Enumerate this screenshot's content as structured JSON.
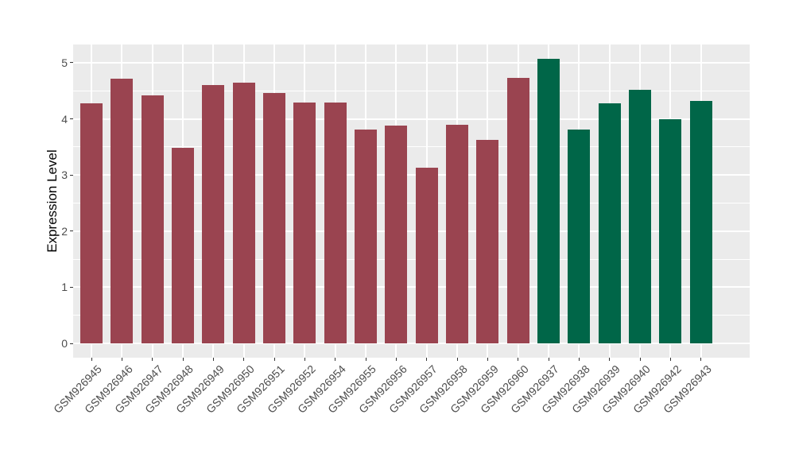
{
  "chart_data": {
    "type": "bar",
    "title": "",
    "xlabel": "",
    "ylabel": "Expression Level",
    "ylim": [
      0,
      5.07
    ],
    "y_major_ticks": [
      0,
      1,
      2,
      3,
      4,
      5
    ],
    "y_tick_labels": [
      "0",
      "1",
      "2",
      "3",
      "4",
      "5"
    ],
    "grid": "on",
    "legend": "none",
    "categories": [
      "GSM926945",
      "GSM926946",
      "GSM926947",
      "GSM926948",
      "GSM926949",
      "GSM926950",
      "GSM926951",
      "GSM926952",
      "GSM926954",
      "GSM926955",
      "GSM926956",
      "GSM926957",
      "GSM926958",
      "GSM926959",
      "GSM926960",
      "GSM926937",
      "GSM926938",
      "GSM926939",
      "GSM926940",
      "GSM926942",
      "GSM926943"
    ],
    "values": [
      4.28,
      4.72,
      4.42,
      3.48,
      4.6,
      4.64,
      4.46,
      4.29,
      4.29,
      3.81,
      3.88,
      3.13,
      3.89,
      3.63,
      4.73,
      5.07,
      3.81,
      4.28,
      4.51,
      3.99,
      4.32
    ],
    "groups": [
      0,
      0,
      0,
      0,
      0,
      0,
      0,
      0,
      0,
      0,
      0,
      0,
      0,
      0,
      0,
      1,
      1,
      1,
      1,
      1,
      1
    ],
    "colors": {
      "group_palette": [
        "#9A4450",
        "#006648"
      ],
      "panel_background": "#EBEBEB",
      "gridline": "#FFFFFF",
      "axis_text": "#4d4d4d",
      "axis_title": "#000000",
      "tick_mark": "#333333"
    }
  }
}
